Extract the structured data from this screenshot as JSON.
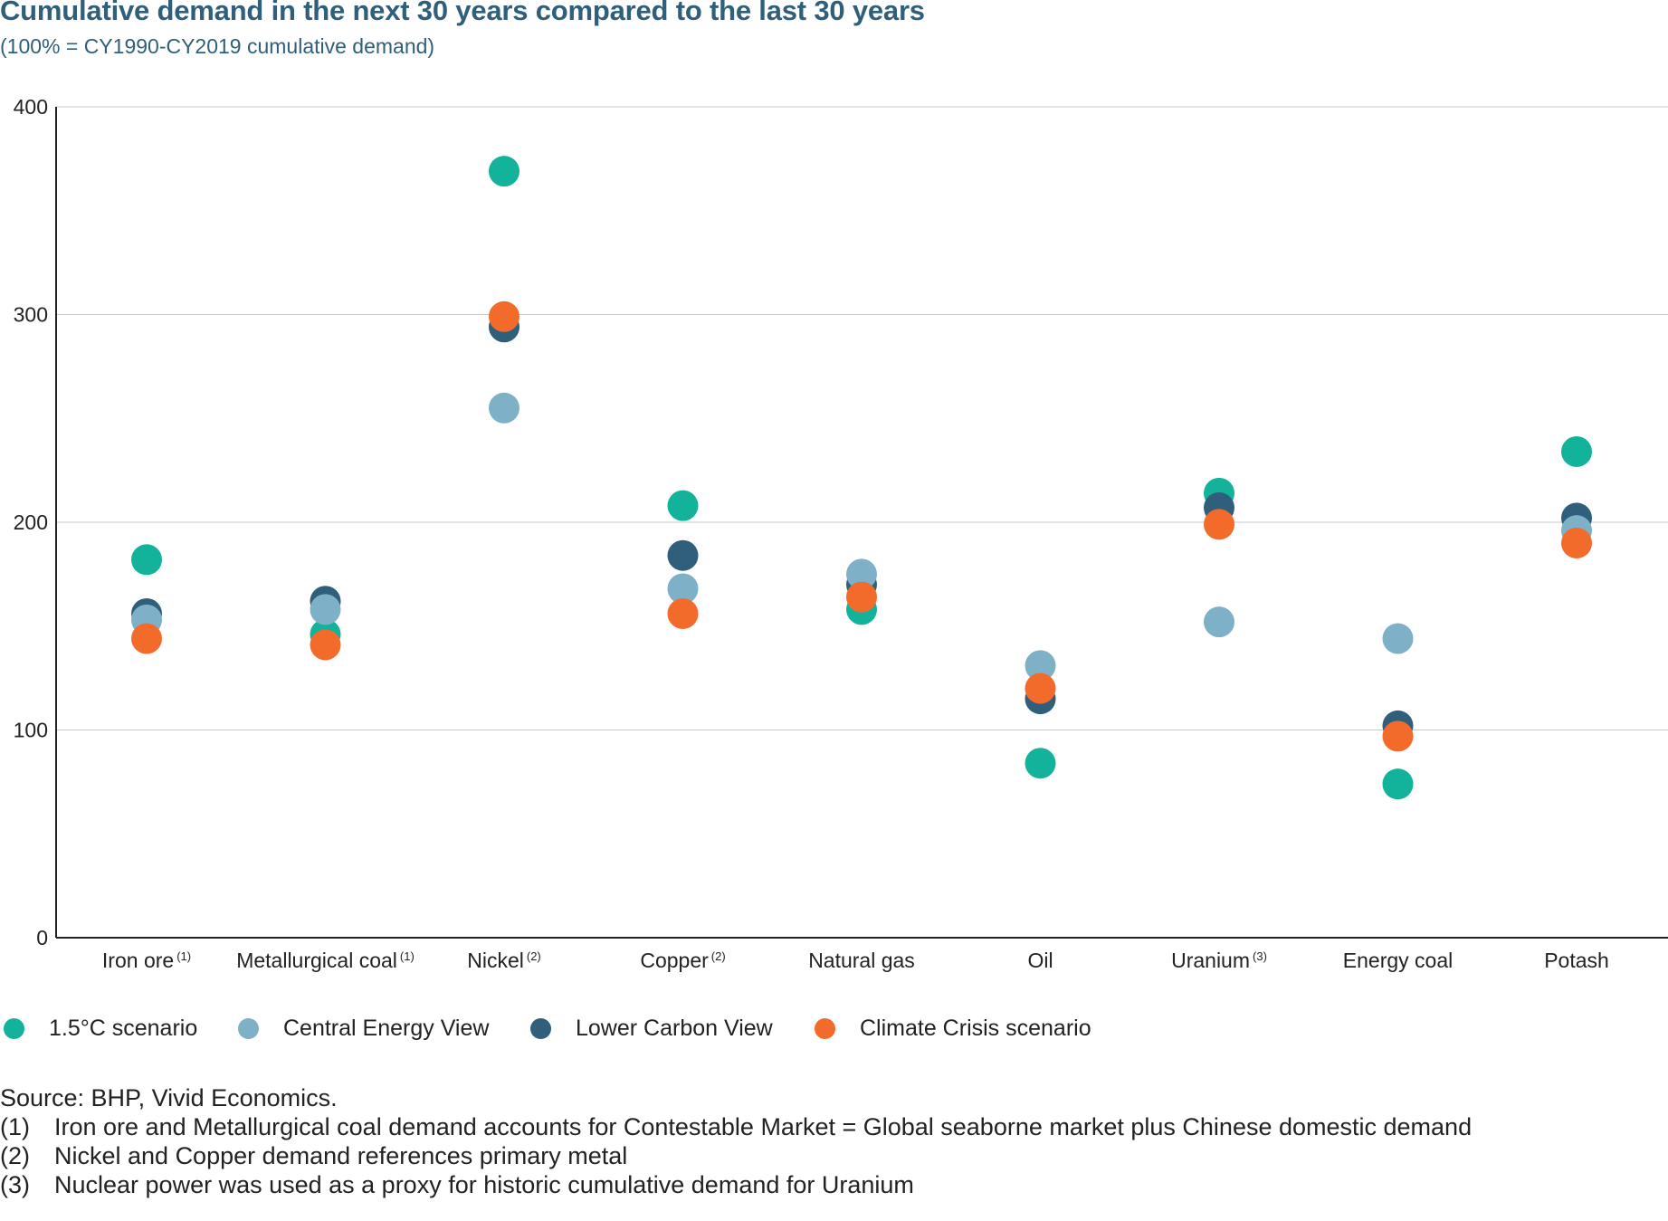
{
  "header": {
    "title": "Cumulative demand in the next 30 years compared to the last 30 years",
    "subtitle": "(100% = CY1990-CY2019 cumulative demand)"
  },
  "chart_data": {
    "type": "scatter",
    "title": "Cumulative demand in the next 30 years compared to the last 30 years",
    "subtitle": "(100% = CY1990-CY2019 cumulative demand)",
    "xlabel": "",
    "ylabel": "",
    "ylim": [
      0,
      400
    ],
    "yticks": [
      0,
      100,
      200,
      300,
      400
    ],
    "grid": true,
    "legend_position": "bottom-left",
    "categories": [
      {
        "label": "Iron ore",
        "note": "(1)"
      },
      {
        "label": "Metallurgical coal",
        "note": "(1)"
      },
      {
        "label": "Nickel",
        "note": "(2)"
      },
      {
        "label": "Copper",
        "note": "(2)"
      },
      {
        "label": "Natural gas",
        "note": ""
      },
      {
        "label": "Oil",
        "note": ""
      },
      {
        "label": "Uranium",
        "note": "(3)"
      },
      {
        "label": "Energy coal",
        "note": ""
      },
      {
        "label": "Potash",
        "note": ""
      }
    ],
    "series": [
      {
        "name": "1.5°C scenario",
        "color": "#12b39a",
        "values": [
          182,
          146,
          369,
          208,
          158,
          84,
          214,
          74,
          234
        ]
      },
      {
        "name": "Lower Carbon View",
        "color": "#2f5f7a",
        "values": [
          156,
          162,
          294,
          184,
          170,
          115,
          207,
          102,
          202
        ]
      },
      {
        "name": "Central Energy View",
        "color": "#7eb1c7",
        "values": [
          153,
          158,
          255,
          168,
          175,
          131,
          152,
          144,
          196
        ]
      },
      {
        "name": "Climate Crisis scenario",
        "color": "#f26b2a",
        "values": [
          144,
          141,
          299,
          156,
          164,
          120,
          199,
          97,
          190
        ]
      }
    ]
  },
  "legend": {
    "items": [
      {
        "label": "1.5°C scenario",
        "color": "#12b39a"
      },
      {
        "label": "Central Energy View",
        "color": "#7eb1c7"
      },
      {
        "label": "Lower Carbon View",
        "color": "#2f5f7a"
      },
      {
        "label": "Climate Crisis scenario",
        "color": "#f26b2a"
      }
    ]
  },
  "notes": {
    "source": "Source: BHP, Vivid Economics.",
    "footnotes": [
      {
        "mark": "(1)",
        "text": "Iron ore and Metallurgical coal demand accounts for Contestable Market = Global seaborne market plus Chinese domestic demand"
      },
      {
        "mark": "(2)",
        "text": "Nickel and Copper demand references primary metal"
      },
      {
        "mark": "(3)",
        "text": "Nuclear power was used as a proxy for historic cumulative demand for Uranium"
      }
    ]
  }
}
